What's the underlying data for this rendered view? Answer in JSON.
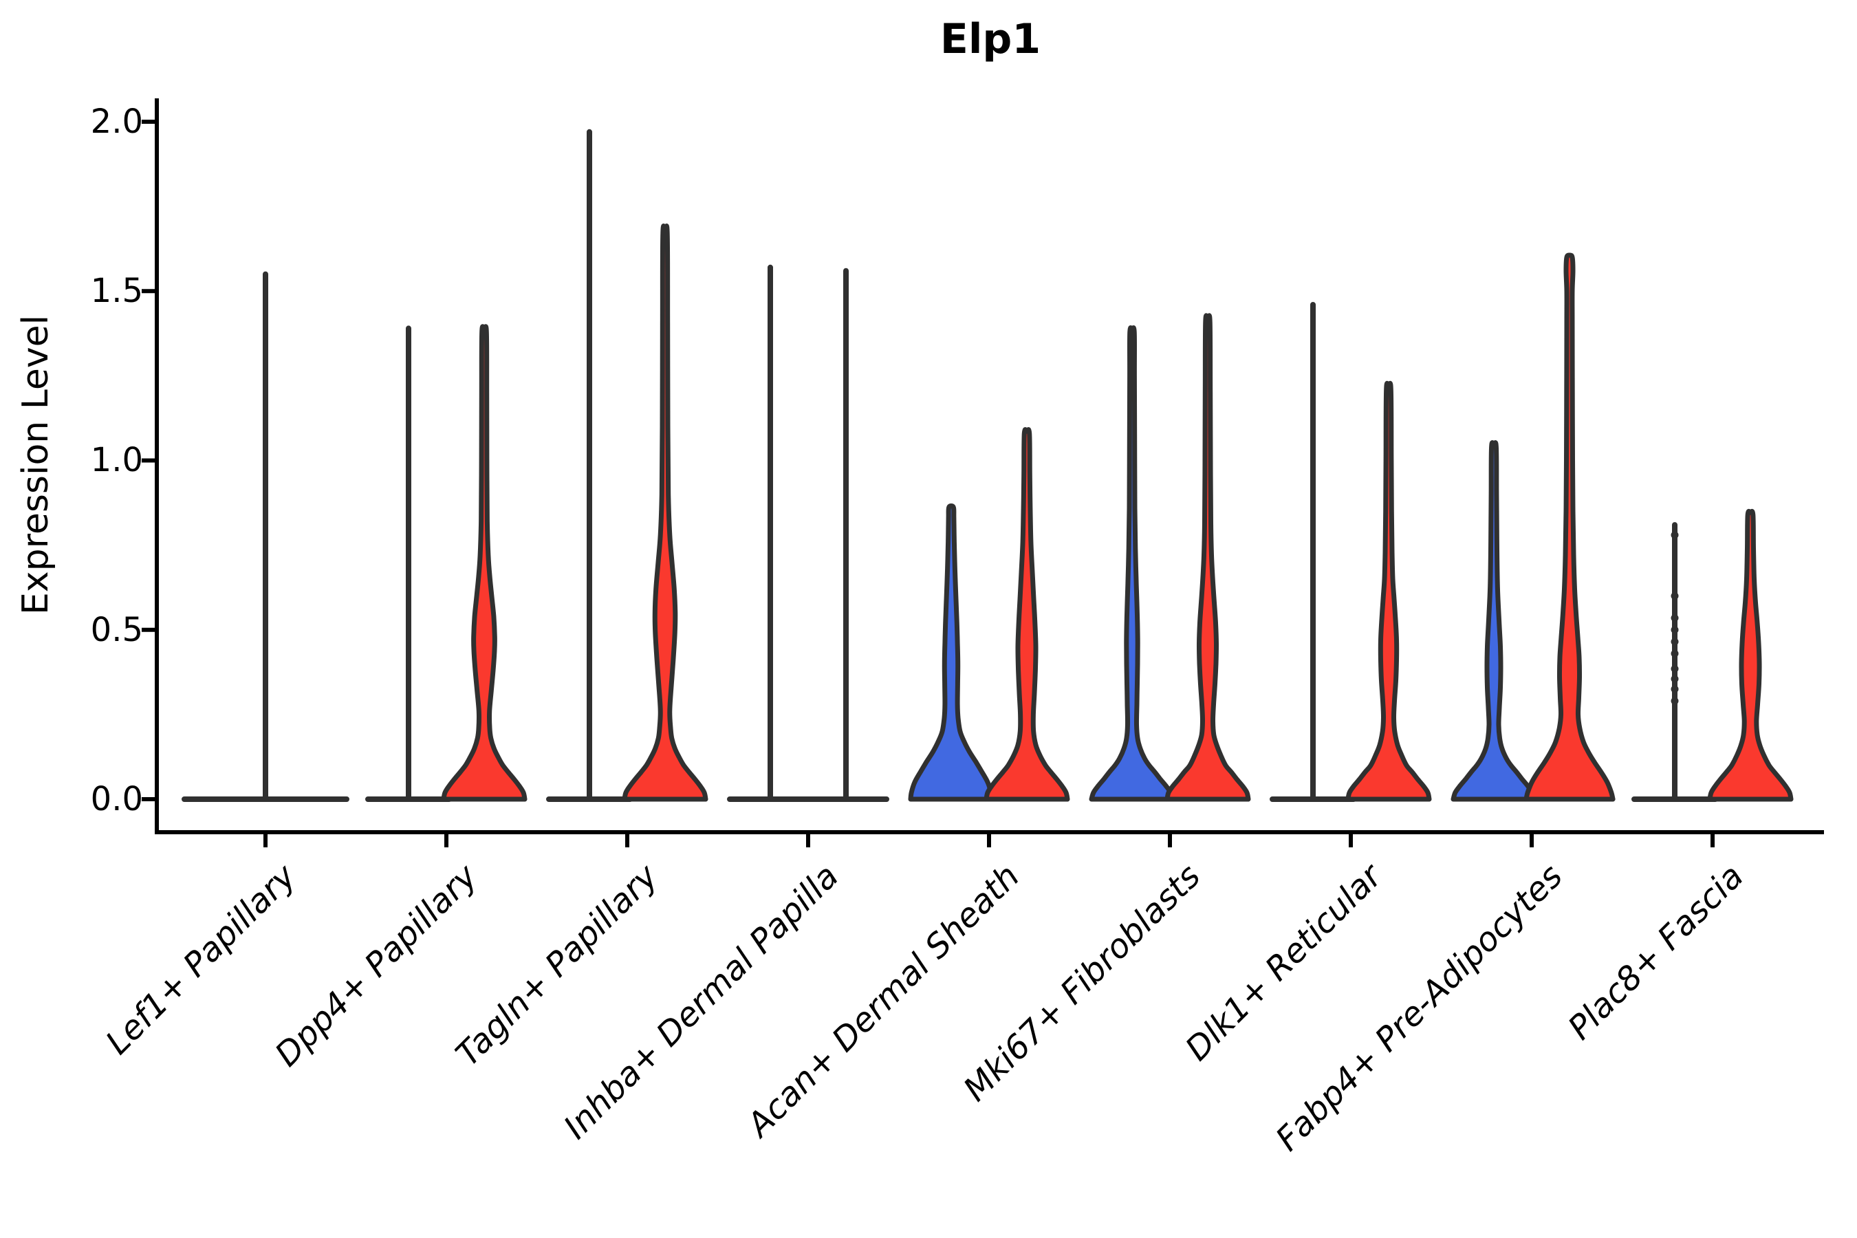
{
  "title": "Elp1",
  "y_axis": {
    "label": "Expression Level",
    "ticks": [
      2.0,
      1.5,
      1.0,
      0.5,
      0.0
    ],
    "tick_labels": [
      "2.0",
      "1.5",
      "1.0",
      "0.5",
      "0.0"
    ],
    "range": [
      -0.1,
      2.07
    ]
  },
  "colors": {
    "group_blue": "#4169E1",
    "group_red": "#FA392E",
    "outline": "#303030",
    "axis": "#000000",
    "background": "#ffffff"
  },
  "chart_data": {
    "type": "violin",
    "title": "Elp1",
    "ylabel": "Expression Level",
    "ylim": [
      -0.1,
      2.07
    ],
    "legend": "none",
    "categories": [
      "Lef1+ Papillary",
      "Dpp4+ Papillary",
      "Tagln+ Papillary",
      "Inhba+ Dermal Papilla",
      "Acan+ Dermal Sheath",
      "Mki67+ Fibroblasts",
      "Dlk1+ Reticular",
      "Fabp4+ Pre-Adipocytes",
      "Plac8+ Fascia"
    ],
    "violins": [
      {
        "category": 0,
        "side": "center",
        "color": "none",
        "kind": "spike",
        "max": 1.55
      },
      {
        "category": 1,
        "side": "left",
        "color": "blue",
        "kind": "spike",
        "max": 1.39
      },
      {
        "category": 1,
        "side": "right",
        "color": "red",
        "kind": "density",
        "max": 1.38,
        "profile": [
          [
            0,
            1.0
          ],
          [
            0.02,
            0.965
          ],
          [
            0.04,
            0.86
          ],
          [
            0.06,
            0.73
          ],
          [
            0.08,
            0.59
          ],
          [
            0.1,
            0.46
          ],
          [
            0.125,
            0.34
          ],
          [
            0.15,
            0.24
          ],
          [
            0.18,
            0.165
          ],
          [
            0.21,
            0.135
          ],
          [
            0.26,
            0.13
          ],
          [
            0.32,
            0.175
          ],
          [
            0.38,
            0.22
          ],
          [
            0.44,
            0.255
          ],
          [
            0.48,
            0.26
          ],
          [
            0.54,
            0.235
          ],
          [
            0.6,
            0.185
          ],
          [
            0.66,
            0.135
          ],
          [
            0.72,
            0.1
          ],
          [
            0.82,
            0.075
          ],
          [
            1.0,
            0.066
          ],
          [
            1.2,
            0.062
          ],
          [
            1.38,
            0.056
          ]
        ]
      },
      {
        "category": 2,
        "side": "left",
        "color": "blue",
        "kind": "spike",
        "max": 1.97
      },
      {
        "category": 2,
        "side": "right",
        "color": "red",
        "kind": "density",
        "max": 1.67,
        "profile": [
          [
            0,
            1.0
          ],
          [
            0.02,
            0.965
          ],
          [
            0.04,
            0.86
          ],
          [
            0.06,
            0.73
          ],
          [
            0.08,
            0.59
          ],
          [
            0.1,
            0.46
          ],
          [
            0.125,
            0.34
          ],
          [
            0.15,
            0.24
          ],
          [
            0.18,
            0.165
          ],
          [
            0.21,
            0.135
          ],
          [
            0.26,
            0.115
          ],
          [
            0.33,
            0.15
          ],
          [
            0.41,
            0.2
          ],
          [
            0.49,
            0.24
          ],
          [
            0.55,
            0.25
          ],
          [
            0.62,
            0.225
          ],
          [
            0.7,
            0.17
          ],
          [
            0.78,
            0.115
          ],
          [
            0.9,
            0.08
          ],
          [
            1.1,
            0.068
          ],
          [
            1.4,
            0.062
          ],
          [
            1.67,
            0.055
          ]
        ]
      },
      {
        "category": 3,
        "side": "left",
        "color": "blue",
        "kind": "spike",
        "max": 1.57
      },
      {
        "category": 3,
        "side": "right",
        "color": "red",
        "kind": "spike",
        "max": 1.56
      },
      {
        "category": 4,
        "side": "left",
        "color": "blue",
        "kind": "density",
        "max": 0.86,
        "profile": [
          [
            0,
            1.0
          ],
          [
            0.02,
            0.98
          ],
          [
            0.05,
            0.9
          ],
          [
            0.08,
            0.76
          ],
          [
            0.11,
            0.61
          ],
          [
            0.14,
            0.45
          ],
          [
            0.17,
            0.32
          ],
          [
            0.2,
            0.22
          ],
          [
            0.24,
            0.17
          ],
          [
            0.28,
            0.155
          ],
          [
            0.34,
            0.16
          ],
          [
            0.4,
            0.165
          ],
          [
            0.46,
            0.155
          ],
          [
            0.52,
            0.14
          ],
          [
            0.6,
            0.115
          ],
          [
            0.68,
            0.092
          ],
          [
            0.76,
            0.075
          ],
          [
            0.83,
            0.066
          ],
          [
            0.86,
            0.06
          ]
        ]
      },
      {
        "category": 4,
        "side": "right",
        "color": "red",
        "kind": "density",
        "max": 1.08,
        "profile": [
          [
            0,
            1.0
          ],
          [
            0.02,
            0.965
          ],
          [
            0.04,
            0.86
          ],
          [
            0.06,
            0.73
          ],
          [
            0.08,
            0.59
          ],
          [
            0.1,
            0.46
          ],
          [
            0.13,
            0.32
          ],
          [
            0.16,
            0.22
          ],
          [
            0.2,
            0.165
          ],
          [
            0.25,
            0.16
          ],
          [
            0.31,
            0.185
          ],
          [
            0.38,
            0.21
          ],
          [
            0.45,
            0.22
          ],
          [
            0.52,
            0.2
          ],
          [
            0.59,
            0.17
          ],
          [
            0.67,
            0.135
          ],
          [
            0.76,
            0.1
          ],
          [
            0.86,
            0.083
          ],
          [
            0.96,
            0.073
          ],
          [
            1.08,
            0.062
          ]
        ]
      },
      {
        "category": 5,
        "side": "left",
        "color": "blue",
        "kind": "density",
        "max": 1.38,
        "profile": [
          [
            0,
            1.0
          ],
          [
            0.02,
            0.95
          ],
          [
            0.04,
            0.83
          ],
          [
            0.06,
            0.69
          ],
          [
            0.08,
            0.56
          ],
          [
            0.1,
            0.42
          ],
          [
            0.12,
            0.31
          ],
          [
            0.15,
            0.2
          ],
          [
            0.18,
            0.135
          ],
          [
            0.22,
            0.11
          ],
          [
            0.28,
            0.118
          ],
          [
            0.34,
            0.127
          ],
          [
            0.4,
            0.135
          ],
          [
            0.46,
            0.139
          ],
          [
            0.52,
            0.132
          ],
          [
            0.58,
            0.118
          ],
          [
            0.66,
            0.098
          ],
          [
            0.74,
            0.081
          ],
          [
            0.86,
            0.068
          ],
          [
            1.05,
            0.062
          ],
          [
            1.25,
            0.058
          ],
          [
            1.38,
            0.054
          ]
        ]
      },
      {
        "category": 5,
        "side": "right",
        "color": "red",
        "kind": "density",
        "max": 1.41,
        "profile": [
          [
            0,
            1.0
          ],
          [
            0.02,
            0.965
          ],
          [
            0.04,
            0.85
          ],
          [
            0.06,
            0.71
          ],
          [
            0.08,
            0.58
          ],
          [
            0.1,
            0.44
          ],
          [
            0.13,
            0.32
          ],
          [
            0.16,
            0.22
          ],
          [
            0.19,
            0.15
          ],
          [
            0.23,
            0.127
          ],
          [
            0.28,
            0.144
          ],
          [
            0.34,
            0.178
          ],
          [
            0.4,
            0.203
          ],
          [
            0.46,
            0.212
          ],
          [
            0.52,
            0.195
          ],
          [
            0.58,
            0.161
          ],
          [
            0.64,
            0.127
          ],
          [
            0.72,
            0.093
          ],
          [
            0.82,
            0.076
          ],
          [
            1.0,
            0.068
          ],
          [
            1.2,
            0.062
          ],
          [
            1.41,
            0.054
          ]
        ]
      },
      {
        "category": 6,
        "side": "left",
        "color": "blue",
        "kind": "spike",
        "max": 1.46
      },
      {
        "category": 6,
        "side": "right",
        "color": "red",
        "kind": "density",
        "max": 1.21,
        "profile": [
          [
            0,
            1.0
          ],
          [
            0.02,
            0.965
          ],
          [
            0.04,
            0.85
          ],
          [
            0.06,
            0.71
          ],
          [
            0.08,
            0.58
          ],
          [
            0.1,
            0.44
          ],
          [
            0.13,
            0.32
          ],
          [
            0.16,
            0.22
          ],
          [
            0.2,
            0.15
          ],
          [
            0.24,
            0.127
          ],
          [
            0.29,
            0.144
          ],
          [
            0.35,
            0.178
          ],
          [
            0.41,
            0.195
          ],
          [
            0.47,
            0.195
          ],
          [
            0.53,
            0.17
          ],
          [
            0.59,
            0.136
          ],
          [
            0.65,
            0.102
          ],
          [
            0.73,
            0.085
          ],
          [
            0.85,
            0.073
          ],
          [
            1.0,
            0.066
          ],
          [
            1.21,
            0.056
          ]
        ]
      },
      {
        "category": 7,
        "side": "left",
        "color": "blue",
        "kind": "density",
        "max": 1.04,
        "profile": [
          [
            0,
            1.0
          ],
          [
            0.02,
            0.95
          ],
          [
            0.04,
            0.83
          ],
          [
            0.06,
            0.69
          ],
          [
            0.08,
            0.56
          ],
          [
            0.1,
            0.42
          ],
          [
            0.12,
            0.31
          ],
          [
            0.15,
            0.2
          ],
          [
            0.18,
            0.144
          ],
          [
            0.22,
            0.119
          ],
          [
            0.27,
            0.136
          ],
          [
            0.33,
            0.161
          ],
          [
            0.39,
            0.17
          ],
          [
            0.45,
            0.161
          ],
          [
            0.51,
            0.136
          ],
          [
            0.57,
            0.11
          ],
          [
            0.64,
            0.088
          ],
          [
            0.76,
            0.075
          ],
          [
            0.9,
            0.066
          ],
          [
            1.04,
            0.058
          ]
        ]
      },
      {
        "category": 7,
        "side": "right",
        "color": "red",
        "kind": "density",
        "max": 1.6,
        "profile": [
          [
            0,
            1.07
          ],
          [
            0.02,
            1.03
          ],
          [
            0.05,
            0.93
          ],
          [
            0.08,
            0.78
          ],
          [
            0.11,
            0.61
          ],
          [
            0.14,
            0.46
          ],
          [
            0.17,
            0.34
          ],
          [
            0.21,
            0.25
          ],
          [
            0.25,
            0.212
          ],
          [
            0.3,
            0.229
          ],
          [
            0.36,
            0.246
          ],
          [
            0.42,
            0.237
          ],
          [
            0.48,
            0.203
          ],
          [
            0.55,
            0.161
          ],
          [
            0.62,
            0.127
          ],
          [
            0.72,
            0.102
          ],
          [
            0.85,
            0.085
          ],
          [
            1.0,
            0.076
          ],
          [
            1.2,
            0.071
          ],
          [
            1.4,
            0.068
          ],
          [
            1.5,
            0.068
          ],
          [
            1.56,
            0.085
          ],
          [
            1.6,
            0.068
          ]
        ]
      },
      {
        "category": 8,
        "side": "left",
        "color": "blue",
        "kind": "spike",
        "max": 0.81,
        "dots": [
          0.29,
          0.325,
          0.355,
          0.385,
          0.43,
          0.465,
          0.5,
          0.535,
          0.6,
          0.78
        ]
      },
      {
        "category": 8,
        "side": "right",
        "color": "red",
        "kind": "density",
        "max": 0.84,
        "profile": [
          [
            0,
            1.0
          ],
          [
            0.02,
            0.965
          ],
          [
            0.04,
            0.86
          ],
          [
            0.06,
            0.73
          ],
          [
            0.08,
            0.59
          ],
          [
            0.1,
            0.46
          ],
          [
            0.13,
            0.33
          ],
          [
            0.16,
            0.23
          ],
          [
            0.19,
            0.17
          ],
          [
            0.23,
            0.15
          ],
          [
            0.28,
            0.178
          ],
          [
            0.34,
            0.212
          ],
          [
            0.4,
            0.22
          ],
          [
            0.46,
            0.203
          ],
          [
            0.52,
            0.17
          ],
          [
            0.58,
            0.127
          ],
          [
            0.65,
            0.093
          ],
          [
            0.74,
            0.076
          ],
          [
            0.84,
            0.064
          ]
        ]
      }
    ]
  }
}
